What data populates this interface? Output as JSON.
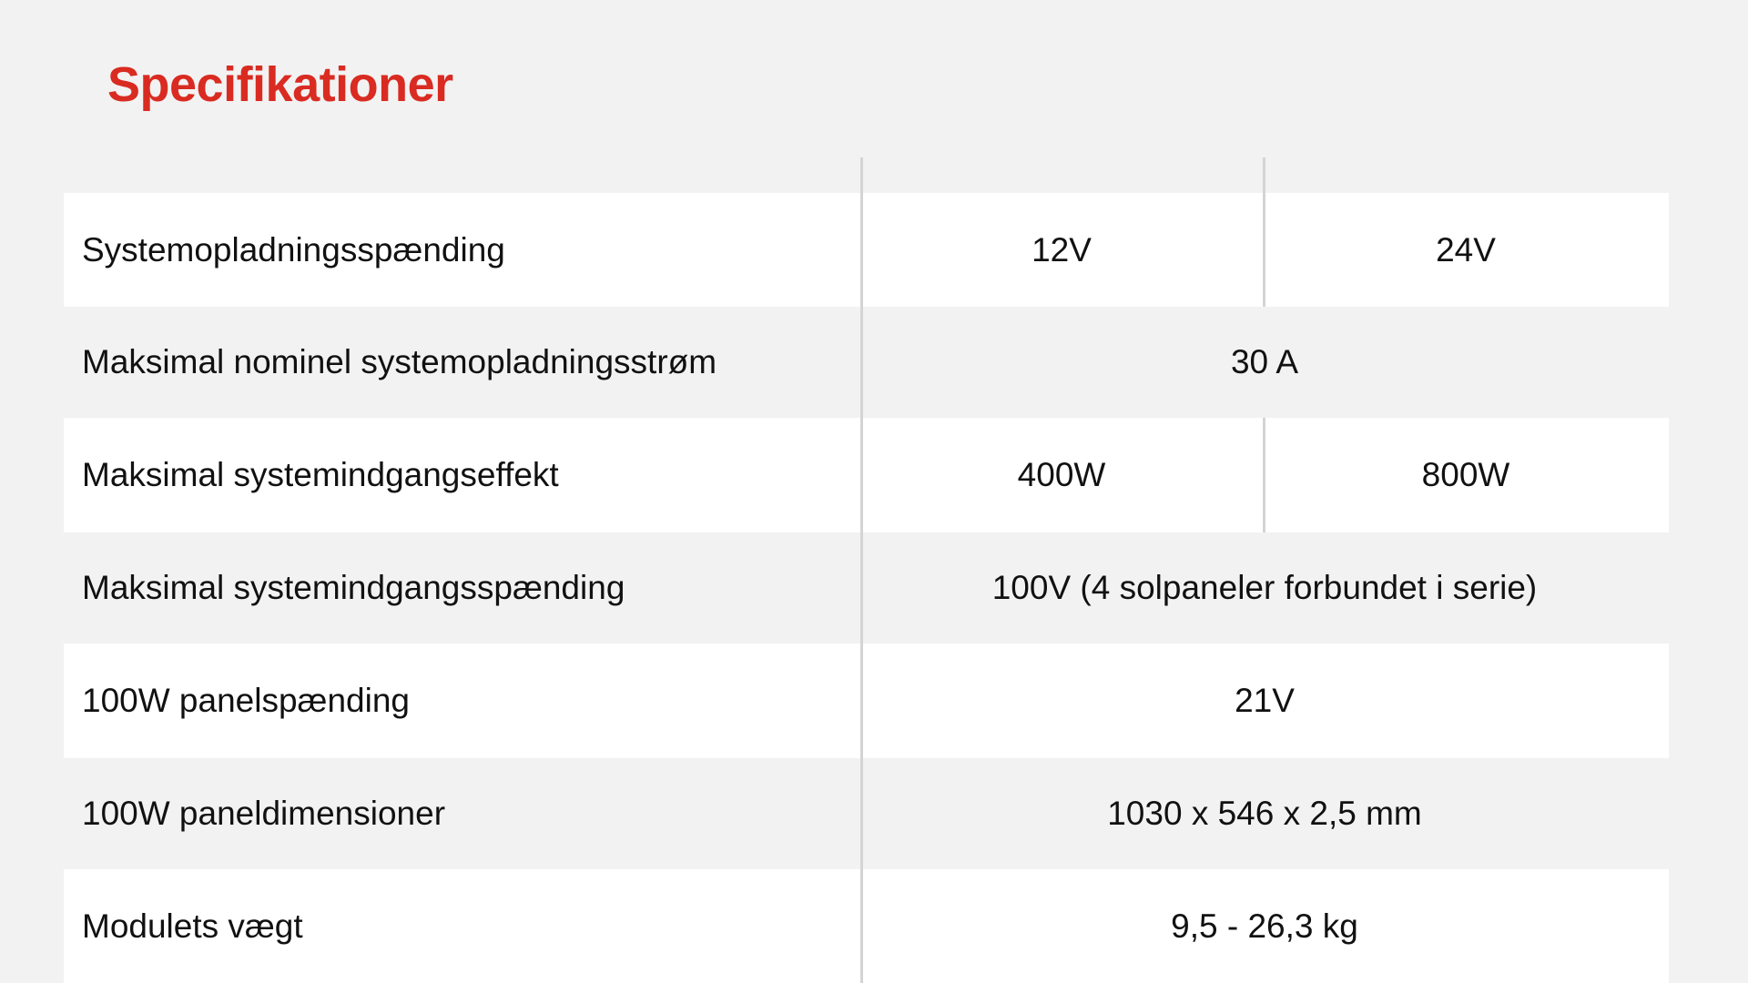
{
  "title": "Specifikationer",
  "rows": [
    {
      "label": "Systemopladningsspænding",
      "values": [
        "12V",
        "24V"
      ]
    },
    {
      "label": "Maksimal nominel systemopladningsstrøm",
      "values": [
        "30 A"
      ]
    },
    {
      "label": "Maksimal systemindgangseffekt",
      "values": [
        "400W",
        "800W"
      ]
    },
    {
      "label": "Maksimal systemindgangsspænding",
      "values": [
        "100V (4 solpaneler forbundet i serie)"
      ]
    },
    {
      "label": "100W panelspænding",
      "values": [
        "21V"
      ]
    },
    {
      "label": "100W paneldimensioner",
      "values": [
        "1030 x 546 x 2,5 mm"
      ]
    },
    {
      "label": "Modulets vægt",
      "values": [
        "9,5 - 26,3 kg"
      ]
    }
  ],
  "colors": {
    "accent": "#d92b21",
    "background": "#f2f2f2",
    "row_alt": "#ffffff",
    "divider": "#d4d4d4"
  }
}
